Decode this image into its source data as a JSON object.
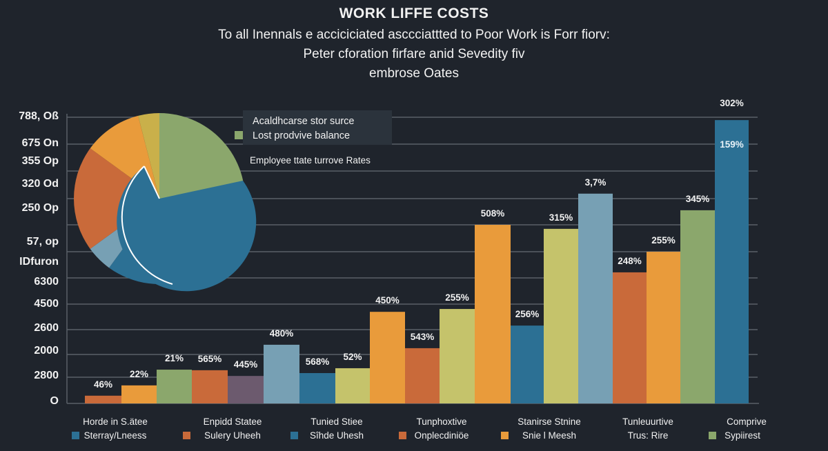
{
  "chart_data": {
    "type": "bar",
    "title": "WORK LIFFE COSTS",
    "subtitle": [
      "To all Inennals e acciciciated asccciattted to Poor Work is Forr fiorv:",
      "Peter cforation firfare anid Sevedity fiv",
      "embrose Oates"
    ],
    "yticks": [
      "788, Oß",
      "675 On",
      "355 Op",
      "320 Od",
      "250 Op",
      "57, op",
      "IDfuron",
      "6300",
      "4500",
      "2600",
      "2000",
      "2800",
      "O"
    ],
    "grid": true,
    "ylim": [
      0,
      100
    ],
    "bars": [
      {
        "label": "46%",
        "value": 2.7,
        "color": "#c96a3a"
      },
      {
        "label": "22%",
        "value": 6.3,
        "color": "#e99b3b"
      },
      {
        "label": "21%",
        "value": 11.8,
        "color": "#8ba76c"
      },
      {
        "label": "565%",
        "value": 11.6,
        "color": "#c96a3a"
      },
      {
        "label": "445%",
        "value": 9.6,
        "color": "#6c5a6e"
      },
      {
        "label": "480%",
        "value": 20.5,
        "color": "#77a0b4"
      },
      {
        "label": "568%",
        "value": 10.6,
        "color": "#2c7094"
      },
      {
        "label": "52%",
        "value": 12.3,
        "color": "#c5c36b"
      },
      {
        "label": "450%",
        "value": 32,
        "color": "#e99b3b"
      },
      {
        "label": "543%",
        "value": 19.3,
        "color": "#c96a3a"
      },
      {
        "label": "255%",
        "value": 33,
        "color": "#c5c36b"
      },
      {
        "label": "508%",
        "value": 62.4,
        "color": "#e99b3b"
      },
      {
        "label": "256%",
        "value": 27.2,
        "color": "#2c7094"
      },
      {
        "label": "315%",
        "value": 61,
        "color": "#c5c36b"
      },
      {
        "label": "3,7%",
        "value": 73.3,
        "color": "#77a0b4"
      },
      {
        "label": "248%",
        "value": 45.8,
        "color": "#c96a3a"
      },
      {
        "label": "255%",
        "value": 53,
        "color": "#e99b3b"
      },
      {
        "label": "345%",
        "value": 67.5,
        "color": "#8ba76c"
      },
      {
        "label": "302%",
        "inner_label": "159%",
        "value": 99,
        "color": "#2c7094"
      }
    ],
    "pie": {
      "slices": [
        {
          "color": "#8ba76c",
          "value": 28
        },
        {
          "color": "#2c7094",
          "value": 32
        },
        {
          "color": "#77a0b4",
          "value": 5
        },
        {
          "color": "#c96a3a",
          "value": 20
        },
        {
          "color": "#e99b3b",
          "value": 11
        },
        {
          "color": "#c9b04a",
          "value": 4
        }
      ]
    },
    "legend_box": {
      "line1": "Acaldhcarse stor surce",
      "line2": "Lost  prodvive balance",
      "line2_color": "#8ba76c",
      "note": "Employee ttate turrove Rates"
    },
    "bottom_legend": [
      {
        "top": "Horde in S.ätee",
        "bottom": "Sterray/Lneess",
        "color": "#2c7094"
      },
      {
        "top": "Enpidd Statee",
        "bottom": "Sulery Uheeh",
        "color": "#c96a3a"
      },
      {
        "top": "Tunied Stiee",
        "bottom": "Sîhde Uhesh",
        "color": "#2c7094"
      },
      {
        "top": "Tunphoxtive",
        "bottom": "Onplecdiniöe",
        "color": "#c96a3a"
      },
      {
        "top": "Stanirse Stnine",
        "bottom": "Snie l Meesh",
        "color": "#e99b3b"
      },
      {
        "top": "Tunleuurtive",
        "bottom": "Trus: Rire",
        "color": ""
      },
      {
        "top": "Comprive",
        "bottom": "Sypiirest",
        "color": "#8ba76c"
      }
    ]
  }
}
